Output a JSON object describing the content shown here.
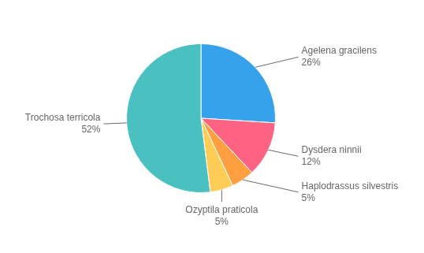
{
  "chart_data": {
    "type": "pie",
    "categories": [
      "Agelena gracilens",
      "Dysdera ninnii",
      "Haplodrassus silvestris",
      "Ozyptila praticola",
      "Trochosa terricola"
    ],
    "values": [
      26,
      12,
      5,
      5,
      52
    ],
    "value_labels": [
      "26%",
      "12%",
      "5%",
      "5%",
      "52%"
    ],
    "data_labels": true
  }
}
